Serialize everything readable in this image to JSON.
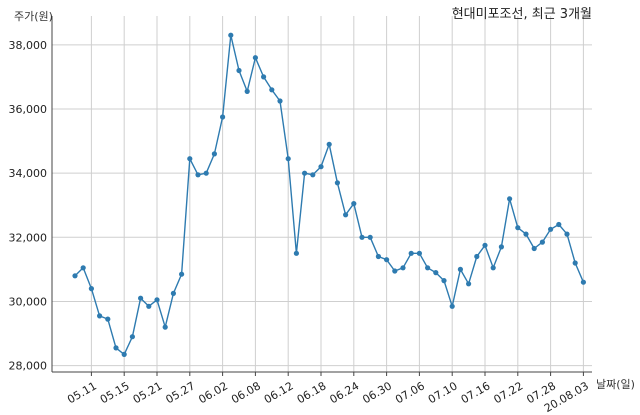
{
  "chart_data": {
    "type": "line",
    "title": "현대미포조선, 최근 3개월",
    "ylabel": "주가(원)",
    "xlabel": "날짜(일)",
    "ylim": [
      27800,
      38900
    ],
    "y_ticks": [
      28000,
      30000,
      32000,
      34000,
      36000,
      38000
    ],
    "y_tick_labels": [
      "28,000",
      "30,000",
      "32,000",
      "34,000",
      "36,000",
      "38,000"
    ],
    "x_tick_labels": [
      "05.11",
      "05.15",
      "05.21",
      "05.27",
      "06.02",
      "06.08",
      "06.12",
      "06.18",
      "06.24",
      "06.30",
      "07.06",
      "07.10",
      "07.16",
      "07.22",
      "07.28",
      "20.08.03"
    ],
    "x_tick_indices": [
      2,
      6,
      10,
      14,
      18,
      22,
      26,
      30,
      34,
      38,
      42,
      46,
      50,
      54,
      58,
      62
    ],
    "grid": true,
    "line_color": "#2e7bb0",
    "series": [
      {
        "values": [
          30800,
          31050,
          30400,
          29550,
          29450,
          28550,
          28350,
          28900,
          30100,
          29850,
          30050,
          29200,
          30250,
          30850,
          34450,
          33950,
          34000,
          34600,
          35750,
          38300,
          37200,
          36550,
          37600,
          37000,
          36600,
          36250,
          34450,
          31500,
          34000,
          33950,
          34200,
          34900,
          33700,
          32700,
          33050,
          32000,
          32000,
          31400,
          31300,
          30950,
          31050,
          31500,
          31500,
          31050,
          30900,
          30650,
          29850,
          31000,
          30550,
          31400,
          31750,
          31050,
          31700,
          33200,
          32300,
          32100,
          31650,
          31850,
          32250,
          32400,
          32100,
          31200,
          30600
        ]
      }
    ]
  }
}
